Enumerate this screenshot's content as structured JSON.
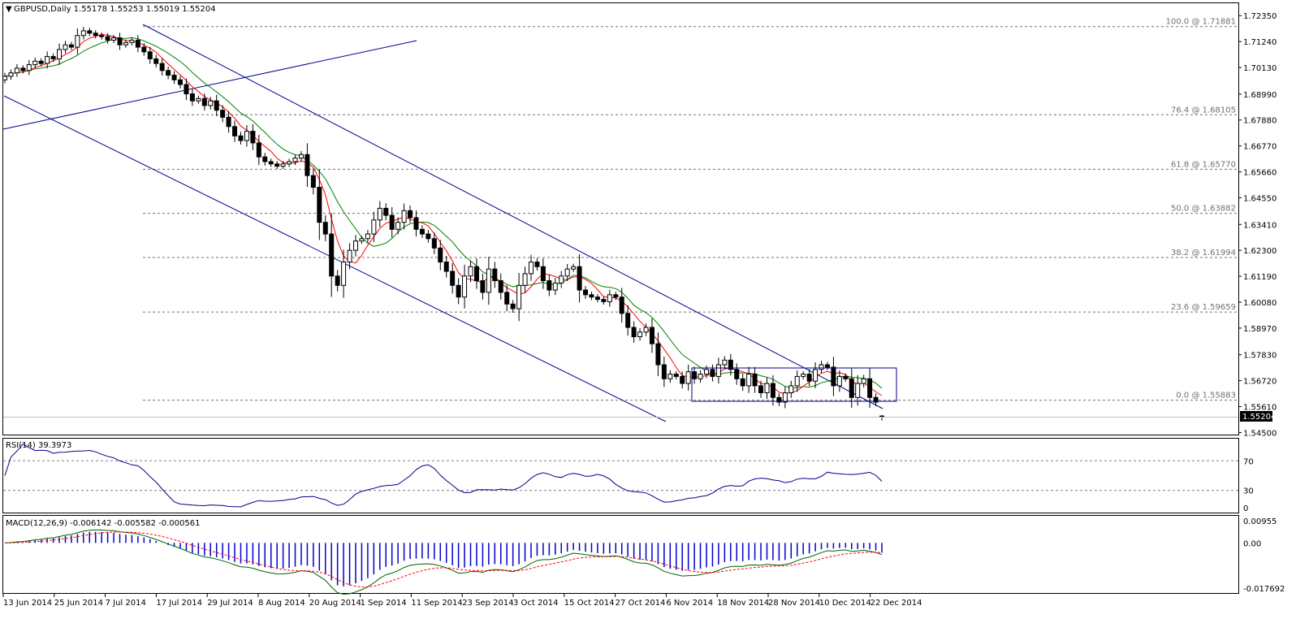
{
  "window": {
    "symbol_header": "GBPUSD,Daily  1.55178 1.55253 1.55019 1.55204",
    "current_price": "1.55204"
  },
  "colors": {
    "background": "#ffffff",
    "candle": "#000000",
    "channel": "#00008b",
    "ma_fast": "#ff0000",
    "ma_slow": "#008000",
    "fib": "#707070",
    "rsi": "#00008b",
    "macd_main": "#006400",
    "macd_signal": "#ff0000",
    "macd_hist": "#0000cd"
  },
  "chart_data": [
    {
      "type": "candlestick",
      "symbol": "GBPUSD",
      "timeframe": "Daily",
      "ylim": [
        1.5441,
        1.7288
      ],
      "y_ticks": [
        "1.72350",
        "1.71240",
        "1.70130",
        "1.68990",
        "1.67880",
        "1.66770",
        "1.65660",
        "1.64550",
        "1.63410",
        "1.62300",
        "1.61190",
        "1.60080",
        "1.58970",
        "1.57830",
        "1.56720",
        "1.55610",
        "1.54500"
      ],
      "x_ticks": [
        "13 Jun 2014",
        "25 Jun 2014",
        "7 Jul 2014",
        "17 Jul 2014",
        "29 Jul 2014",
        "8 Aug 2014",
        "20 Aug 2014",
        "1 Sep 2014",
        "11 Sep 2014",
        "23 Sep 2014",
        "3 Oct 2014",
        "15 Oct 2014",
        "27 Oct 2014",
        "6 Nov 2014",
        "18 Nov 2014",
        "28 Nov 2014",
        "10 Dec 2014",
        "22 Dec 2014"
      ],
      "last": {
        "open": 1.55178,
        "high": 1.55253,
        "low": 1.55019,
        "close": 1.55204
      },
      "fibonacci": [
        {
          "label": "100.0 @ 1.71881",
          "value": 1.71881
        },
        {
          "label": "76.4 @ 1.68105",
          "value": 1.68105
        },
        {
          "label": "61.8 @ 1.65770",
          "value": 1.6577
        },
        {
          "label": "50.0 @ 1.63882",
          "value": 1.63882
        },
        {
          "label": "38.2 @ 1.61994",
          "value": 1.61994
        },
        {
          "label": "23.6 @ 1.59659",
          "value": 1.59659
        },
        {
          "label": "0.0 @ 1.55883",
          "value": 1.55883
        }
      ],
      "closes": [
        1.6975,
        1.699,
        1.701,
        1.7,
        1.7025,
        1.704,
        1.703,
        1.706,
        1.705,
        1.709,
        1.711,
        1.71,
        1.715,
        1.717,
        1.716,
        1.715,
        1.7145,
        1.713,
        1.714,
        1.711,
        1.712,
        1.713,
        1.71,
        1.708,
        1.705,
        1.703,
        1.7,
        1.698,
        1.696,
        1.694,
        1.69,
        1.687,
        1.688,
        1.685,
        1.687,
        1.683,
        1.68,
        1.676,
        1.672,
        1.67,
        1.674,
        1.669,
        1.663,
        1.661,
        1.66,
        1.659,
        1.66,
        1.661,
        1.6625,
        1.664,
        1.655,
        1.65,
        1.635,
        1.63,
        1.612,
        1.608,
        1.618,
        1.623,
        1.627,
        1.628,
        1.63,
        1.636,
        1.641,
        1.638,
        1.632,
        1.635,
        1.64,
        1.637,
        1.632,
        1.63,
        1.628,
        1.624,
        1.618,
        1.614,
        1.608,
        1.603,
        1.612,
        1.616,
        1.61,
        1.605,
        1.615,
        1.61,
        1.605,
        1.6,
        1.598,
        1.608,
        1.613,
        1.618,
        1.616,
        1.61,
        1.606,
        1.609,
        1.612,
        1.615,
        1.616,
        1.606,
        1.604,
        1.603,
        1.602,
        1.601,
        1.604,
        1.603,
        1.596,
        1.59,
        1.586,
        1.588,
        1.59,
        1.583,
        1.574,
        1.568,
        1.57,
        1.569,
        1.566,
        1.571,
        1.568,
        1.57,
        1.572,
        1.569,
        1.574,
        1.576,
        1.572,
        1.568,
        1.565,
        1.57,
        1.565,
        1.562,
        1.566,
        1.56,
        1.558,
        1.562,
        1.565,
        1.569,
        1.57,
        1.567,
        1.572,
        1.574,
        1.573,
        1.565,
        1.569,
        1.568,
        1.56,
        1.566,
        1.568,
        1.56,
        1.558,
        1.552
      ]
    },
    {
      "type": "line",
      "title": "RSI(14) 39.3973",
      "ylim": [
        0,
        100
      ],
      "y_ticks": [
        "70",
        "30",
        "0"
      ],
      "levels": [
        70,
        30
      ]
    },
    {
      "type": "bar",
      "title": "MACD(12,26,9) -0.006142 -0.005582 -0.000561",
      "ylim": [
        -0.017692,
        0.00955
      ],
      "y_ticks": [
        "0.00955",
        "0.00",
        "-0.017692"
      ]
    }
  ]
}
